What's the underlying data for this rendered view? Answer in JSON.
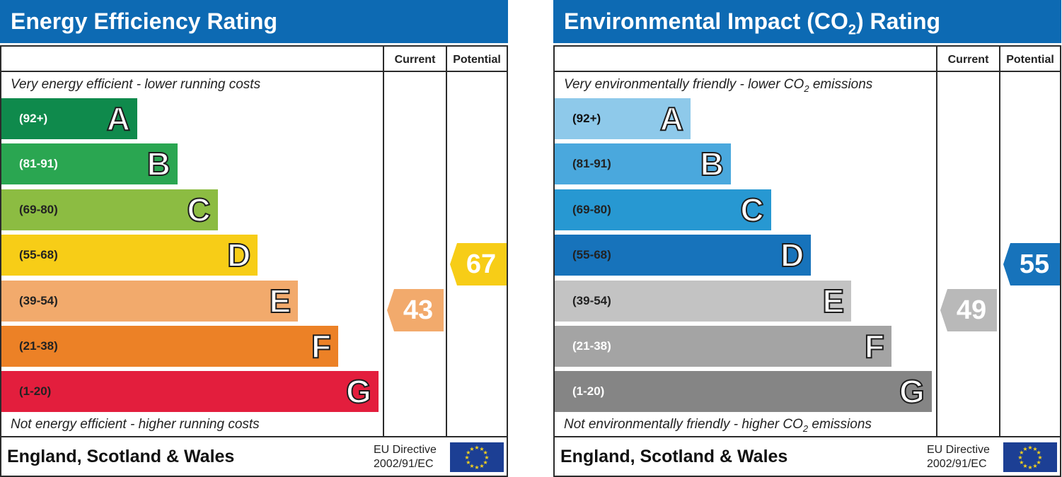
{
  "chart_data": [
    {
      "type": "bar",
      "title": "Energy Efficiency Rating",
      "columns": [
        "Current",
        "Potential"
      ],
      "top_note": "Very energy efficient - lower running costs",
      "bottom_note": "Not energy efficient - higher running costs",
      "categories": [
        "A",
        "B",
        "C",
        "D",
        "E",
        "F",
        "G"
      ],
      "ranges": [
        "(92+)",
        "(81-91)",
        "(69-80)",
        "(55-68)",
        "(39-54)",
        "(21-38)",
        "(1-20)"
      ],
      "band_colors": [
        "#0f8a4c",
        "#2aa651",
        "#8cbc42",
        "#f7cd17",
        "#f2aa6c",
        "#ec8126",
        "#e31e3d"
      ],
      "range_text_colors": [
        "#ffffff",
        "#ffffff",
        "#222222",
        "#222222",
        "#222222",
        "#222222",
        "#222222"
      ],
      "current": {
        "value": "43",
        "color": "#f2aa6c"
      },
      "potential": {
        "value": "67",
        "color": "#f7cd17"
      },
      "footer": "England, Scotland & Wales",
      "directive_line1": "EU Directive",
      "directive_line2": "2002/91/EC"
    },
    {
      "type": "bar",
      "title_main": "Environmental Impact (CO",
      "title_sub": "2",
      "title_end": ") Rating",
      "columns": [
        "Current",
        "Potential"
      ],
      "top_note_main": "Very environmentally friendly - lower CO",
      "top_note_sub": "2",
      "top_note_end": " emissions",
      "bottom_note_main": "Not environmentally friendly - higher CO",
      "bottom_note_sub": "2",
      "bottom_note_end": " emissions",
      "categories": [
        "A",
        "B",
        "C",
        "D",
        "E",
        "F",
        "G"
      ],
      "ranges": [
        "(92+)",
        "(81-91)",
        "(69-80)",
        "(55-68)",
        "(39-54)",
        "(21-38)",
        "(1-20)"
      ],
      "band_colors": [
        "#8ec9ea",
        "#4aa8dd",
        "#2798d2",
        "#1773bb",
        "#c3c3c3",
        "#a4a4a4",
        "#858585"
      ],
      "range_text_colors": [
        "#111111",
        "#222222",
        "#222222",
        "#222222",
        "#222222",
        "#ffffff",
        "#ffffff"
      ],
      "current": {
        "value": "49",
        "color": "#b9b9b9"
      },
      "potential": {
        "value": "55",
        "color": "#1773bb"
      },
      "footer": "England, Scotland & Wales",
      "directive_line1": "EU Directive",
      "directive_line2": "2002/91/EC"
    }
  ]
}
